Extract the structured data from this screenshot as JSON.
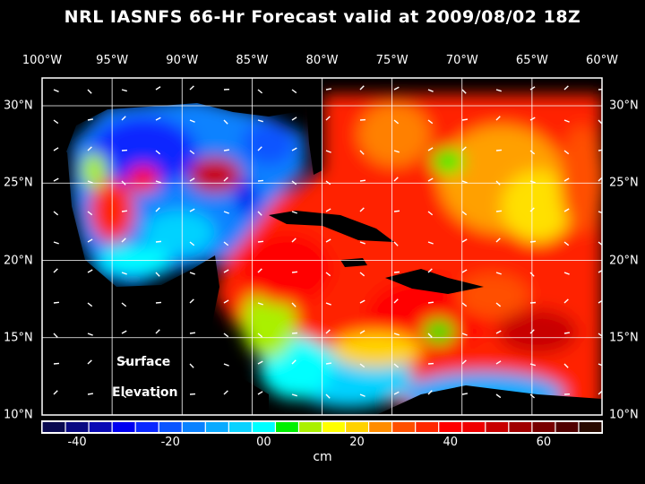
{
  "title": "NRL IASNFS  66-Hr Forecast valid at 2009/08/02 18Z",
  "lon_labels": [
    "100°W",
    "95°W",
    "90°W",
    "85°W",
    "80°W",
    "75°W",
    "70°W",
    "65°W",
    "60°W"
  ],
  "lat_labels": [
    "30°N",
    "25°N",
    "20°N",
    "15°N",
    "10°N"
  ],
  "field_label": [
    "Surface",
    "Elevation"
  ],
  "colorbar": {
    "ticks": [
      "-40",
      "-20",
      "00",
      "20",
      "40",
      "60"
    ],
    "unit": "cm",
    "range": [
      -50,
      70
    ],
    "step": 5,
    "colors": [
      "#0a0a50",
      "#0a0a82",
      "#0a0ab4",
      "#0000f0",
      "#0a28ff",
      "#0a55ff",
      "#0a82ff",
      "#0aaaff",
      "#0ad2ff",
      "#00ffff",
      "#00f000",
      "#aaf000",
      "#ffff00",
      "#ffd200",
      "#ff8c00",
      "#ff5000",
      "#ff2800",
      "#ff0000",
      "#f00000",
      "#c80000",
      "#a00000",
      "#780000",
      "#500000",
      "#280a00"
    ]
  },
  "map": {
    "lon_range": [
      "100°W",
      "60°W"
    ],
    "lat_range": [
      "10°N",
      "31.8°N"
    ]
  }
}
